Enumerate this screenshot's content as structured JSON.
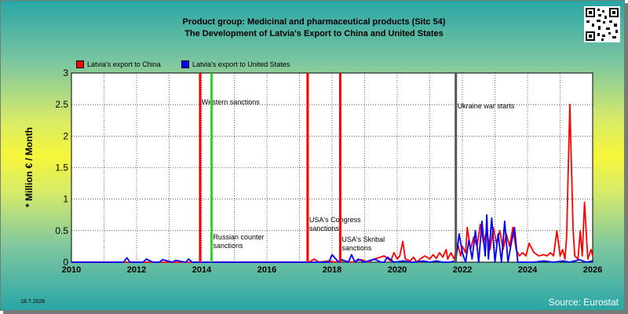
{
  "header": {
    "title_line1": "Product group: Medicinal and pharmaceutical products (Sitc 54)",
    "title_line2": "The Development of Latvia's Export to  China and United States"
  },
  "footer": {
    "date": "18.7.2026",
    "source": "Source: Eurostat"
  },
  "chart_data": {
    "type": "line",
    "ylabel": "* Million € / Month",
    "ylim": [
      0,
      3
    ],
    "xlim": [
      2010,
      2026
    ],
    "grid": true,
    "legend_position": "top-left",
    "y_ticks": [
      "0",
      "0.5",
      "1",
      "1.5",
      "2",
      "2.5",
      "3"
    ],
    "x_ticks": [
      "2010",
      "2012",
      "2014",
      "2016",
      "2018",
      "2020",
      "2022",
      "2024",
      "2026"
    ],
    "series": [
      {
        "name": "Latvia's export to China",
        "color": "#ff0000",
        "x": [
          2010.0,
          2016.5,
          2017.3,
          2017.45,
          2017.6,
          2017.9,
          2018.1,
          2018.3,
          2018.6,
          2018.9,
          2019.1,
          2019.3,
          2019.6,
          2019.8,
          2019.9,
          2020.0,
          2020.08,
          2020.17,
          2020.25,
          2020.4,
          2020.5,
          2020.6,
          2020.7,
          2020.85,
          2021.0,
          2021.1,
          2021.2,
          2021.3,
          2021.4,
          2021.5,
          2021.55,
          2021.65,
          2021.75,
          2021.85,
          2021.95,
          2022.0,
          2022.1,
          2022.15,
          2022.25,
          2022.35,
          2022.45,
          2022.55,
          2022.65,
          2022.75,
          2022.85,
          2022.95,
          2023.05,
          2023.15,
          2023.25,
          2023.35,
          2023.45,
          2023.55,
          2023.65,
          2023.75,
          2023.85,
          2023.95,
          2024.05,
          2024.2,
          2024.35,
          2024.5,
          2024.6,
          2024.7,
          2024.8,
          2024.9,
          2025.0,
          2025.08,
          2025.15,
          2025.2,
          2025.3,
          2025.4,
          2025.45,
          2025.55,
          2025.62,
          2025.68,
          2025.75,
          2025.85,
          2025.95,
          2026.0
        ],
        "values": [
          0.0,
          0.0,
          0.0,
          0.05,
          0.0,
          0.02,
          0.0,
          0.03,
          0.0,
          0.04,
          0.0,
          0.05,
          0.1,
          0.02,
          0.15,
          0.05,
          0.1,
          0.33,
          0.05,
          0.02,
          0.08,
          0.0,
          0.05,
          0.1,
          0.05,
          0.12,
          0.06,
          0.15,
          0.08,
          0.2,
          0.05,
          0.15,
          0.05,
          0.3,
          0.1,
          0.25,
          0.15,
          0.55,
          0.2,
          0.4,
          0.25,
          0.6,
          0.3,
          0.5,
          0.2,
          0.55,
          0.3,
          0.5,
          0.2,
          0.45,
          0.25,
          0.55,
          0.2,
          0.1,
          0.15,
          0.1,
          0.3,
          0.15,
          0.1,
          0.12,
          0.1,
          0.15,
          0.1,
          0.5,
          0.1,
          0.2,
          0.05,
          0.4,
          2.5,
          0.5,
          0.1,
          0.05,
          0.5,
          0.1,
          0.95,
          0.05,
          0.2,
          0.1
        ]
      },
      {
        "name": "Latvia's export to United States",
        "color": "#0000ff",
        "x": [
          2010.0,
          2011.6,
          2011.7,
          2011.8,
          2012.2,
          2012.3,
          2012.5,
          2012.7,
          2012.8,
          2013.1,
          2013.2,
          2013.5,
          2013.6,
          2013.7,
          2014.0,
          2016.5,
          2017.5,
          2017.9,
          2018.0,
          2018.2,
          2018.3,
          2018.5,
          2018.6,
          2018.7,
          2018.8,
          2019.0,
          2019.3,
          2019.5,
          2019.6,
          2019.7,
          2019.9,
          2020.2,
          2020.4,
          2020.5,
          2020.8,
          2021.0,
          2021.2,
          2021.4,
          2021.6,
          2021.8,
          2021.9,
          2022.0,
          2022.1,
          2022.2,
          2022.3,
          2022.4,
          2022.5,
          2022.6,
          2022.7,
          2022.75,
          2022.8,
          2022.9,
          2023.0,
          2023.1,
          2023.2,
          2023.3,
          2023.4,
          2023.5,
          2023.6,
          2023.7,
          2023.9,
          2024.2,
          2024.5,
          2024.8,
          2025.1,
          2025.3,
          2025.6,
          2025.8,
          2026.0
        ],
        "values": [
          0.0,
          0.0,
          0.07,
          0.0,
          0.0,
          0.05,
          0.0,
          0.0,
          0.04,
          0.0,
          0.03,
          0.0,
          0.05,
          0.0,
          0.0,
          0.0,
          0.0,
          0.0,
          0.12,
          0.0,
          0.04,
          0.0,
          0.12,
          0.0,
          0.05,
          0.0,
          0.05,
          0.0,
          0.0,
          0.08,
          0.0,
          0.02,
          0.0,
          0.0,
          0.02,
          0.0,
          0.02,
          0.0,
          0.0,
          0.02,
          0.45,
          0.15,
          0.0,
          0.35,
          0.05,
          0.5,
          0.0,
          0.65,
          0.1,
          0.75,
          0.05,
          0.7,
          0.0,
          0.45,
          0.0,
          0.65,
          0.0,
          0.3,
          0.55,
          0.0,
          0.0,
          0.0,
          0.02,
          0.0,
          0.02,
          0.0,
          0.04,
          0.0,
          0.02
        ]
      }
    ],
    "event_lines": [
      {
        "x": 2013.95,
        "color": "#ff0000",
        "label": "Western sanctions"
      },
      {
        "x": 2014.3,
        "color": "#22dd22",
        "label": "Russian counter sanctions"
      },
      {
        "x": 2017.25,
        "color": "#ff0000",
        "label": "USA's Congress sanctions"
      },
      {
        "x": 2018.25,
        "color": "#ff0000",
        "label": "USA's Skribal sanctions"
      },
      {
        "x": 2021.8,
        "color": "#555555",
        "label": "Ukraine war starts"
      }
    ]
  }
}
